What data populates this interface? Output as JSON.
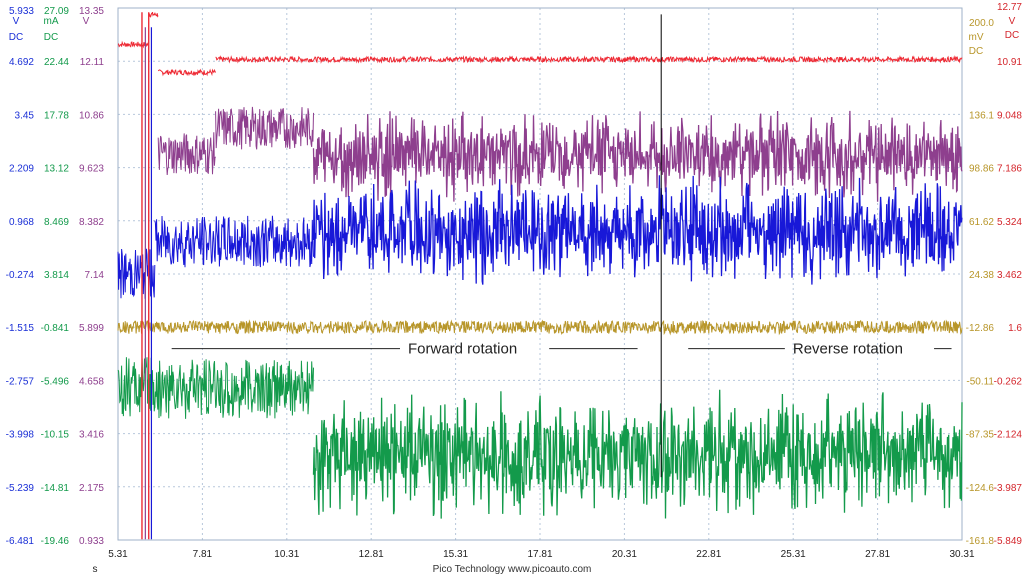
{
  "chart_data": {
    "type": "line",
    "title": "",
    "x": {
      "label": "s",
      "range": [
        5.31,
        30.31
      ],
      "ticks": [
        "5.31",
        "7.81",
        "10.31",
        "12.81",
        "15.31",
        "17.81",
        "20.31",
        "22.81",
        "25.31",
        "27.81",
        "30.31"
      ],
      "grid": true
    },
    "left_axes": [
      {
        "unit": "V",
        "sub": "DC",
        "color": "#1a2fd6",
        "ticks": [
          "5.933",
          "4.692",
          "3.45",
          "2.209",
          "0.968",
          "-0.274",
          "-1.515",
          "-2.757",
          "-3.998",
          "-5.239",
          "-6.481"
        ]
      },
      {
        "unit": "mA",
        "sub": "DC",
        "color": "#139a4b",
        "ticks": [
          "27.09",
          "22.44",
          "17.78",
          "13.12",
          "8.469",
          "3.814",
          "-0.841",
          "-5.496",
          "-10.15",
          "-14.81",
          "-19.46"
        ]
      },
      {
        "unit": "V",
        "sub": "",
        "color": "#8e3f8e",
        "ticks": [
          "13.35",
          "12.11",
          "10.86",
          "9.623",
          "8.382",
          "7.14",
          "5.899",
          "4.658",
          "3.416",
          "2.175",
          "0.933"
        ]
      }
    ],
    "right_axes": [
      {
        "unit": "mV",
        "sub": "DC",
        "head": "200.0",
        "color": "#b8962a",
        "ticks": [
          "",
          "",
          "136.1",
          "98.86",
          "61.62",
          "24.38",
          "-12.86",
          "-50.11",
          "-87.35",
          "-124.6",
          "-161.8"
        ]
      },
      {
        "unit": "V",
        "sub": "DC",
        "head": "12.77",
        "color": "#d4262c",
        "ticks": [
          "",
          "10.91",
          "9.048",
          "7.186",
          "5.324",
          "3.462",
          "1.6",
          "-0.262",
          "-2.124",
          "-3.987",
          "-5.849"
        ]
      }
    ],
    "series": [
      {
        "color": "#ee2b35",
        "level": 12.15,
        "noise": 0.06,
        "segments": [
          [
            5.31,
            6.22,
            12.5,
            0
          ],
          [
            6.22,
            6.5,
            13.2,
            0
          ],
          [
            6.5,
            8.2,
            11.85,
            0
          ],
          [
            8.2,
            30.31,
            12.15,
            0
          ]
        ]
      },
      {
        "color": "#8e3f8e",
        "level": 10.6,
        "noise": 0.5,
        "segments": [
          [
            6.5,
            8.2,
            9.95,
            0
          ],
          [
            8.2,
            11.1,
            10.55,
            0
          ],
          [
            11.1,
            30.31,
            9.9,
            1
          ]
        ]
      },
      {
        "color": "#1818d8",
        "level": 7.9,
        "noise": 0.6,
        "segments": [
          [
            5.31,
            6.4,
            7.14,
            0
          ],
          [
            6.4,
            11.1,
            7.9,
            0
          ],
          [
            11.1,
            30.31,
            8.15,
            1
          ]
        ]
      },
      {
        "color": "#b8962a",
        "level": 5.899,
        "noise": 0.15,
        "segments": [
          [
            5.31,
            30.31,
            5.899,
            0
          ]
        ]
      },
      {
        "color": "#139a4b",
        "level": 4.4,
        "noise": 0.7,
        "segments": [
          [
            5.31,
            6.4,
            4.5,
            0
          ],
          [
            6.4,
            11.1,
            4.45,
            0
          ],
          [
            11.1,
            30.31,
            2.95,
            1
          ]
        ]
      }
    ],
    "marker_x": 21.4,
    "annotations": [
      {
        "text": "Forward rotation",
        "x_from": 6.9,
        "x_to": 20.7,
        "label_x": 13.9,
        "y": 5.4
      },
      {
        "text": "Reverse rotation",
        "x_from": 22.2,
        "x_to": 30.0,
        "label_x": 25.3,
        "y": 5.4
      }
    ]
  },
  "footer": "Pico Technology   www.picoauto.com"
}
